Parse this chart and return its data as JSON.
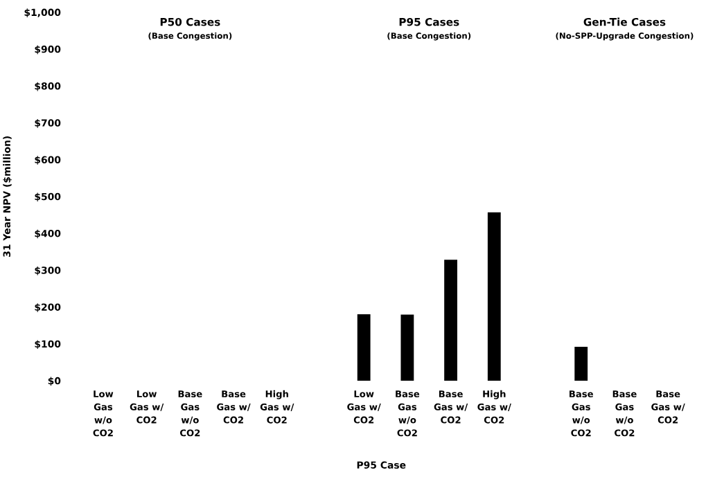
{
  "chart_data": {
    "type": "bar",
    "xlabel": "P95 Case",
    "ylabel": "31 Year NPV ($million)",
    "categories": [
      "Low\nGas\nw/o\nCO2",
      "Low\nGas w/\nCO2",
      "Base\nGas\nw/o\nCO2",
      "Base\nGas w/\nCO2",
      "High\nGas w/\nCO2",
      null,
      "Low\nGas w/\nCO2",
      "Base\nGas\nw/o\nCO2",
      "Base\nGas w/\nCO2",
      "High\nGas w/\nCO2",
      null,
      "Base\nGas\nw/o\nCO2",
      "Base\nGas\nw/o\nCO2",
      "Base\nGas w/\nCO2"
    ],
    "values": [
      null,
      null,
      null,
      null,
      null,
      null,
      180,
      179,
      328,
      457,
      null,
      92,
      null,
      null
    ],
    "color": "#000000",
    "ylim": [
      0,
      1000
    ],
    "yticks": [
      {
        "value": 0,
        "label": "$0"
      },
      {
        "value": 100,
        "label": "$100"
      },
      {
        "value": 200,
        "label": "$200"
      },
      {
        "value": 300,
        "label": "$300"
      },
      {
        "value": 400,
        "label": "$400"
      },
      {
        "value": 500,
        "label": "$500"
      },
      {
        "value": 600,
        "label": "$600"
      },
      {
        "value": 700,
        "label": "$700"
      },
      {
        "value": 800,
        "label": "$800"
      },
      {
        "value": 900,
        "label": "$900"
      },
      {
        "value": 1000,
        "label": "$1,000"
      }
    ],
    "grid": false,
    "annotations": [
      "P50 Cases",
      "(Base Congestion)",
      "P95 Cases",
      "(Base Congestion)",
      "Gen-Tie Cases",
      "(No-SPP-Upgrade Congestion)"
    ]
  }
}
